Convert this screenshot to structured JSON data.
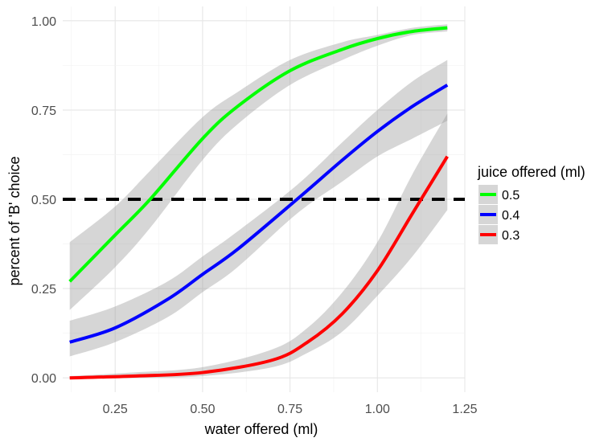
{
  "chart_data": {
    "type": "line",
    "xlabel": "water offered (ml)",
    "ylabel": "percent of 'B' choice",
    "xlim": [
      0.1,
      1.25
    ],
    "ylim": [
      -0.04,
      1.04
    ],
    "xticks": [
      0.25,
      0.5,
      0.75,
      1.0,
      1.25
    ],
    "xtick_labels": [
      "0.25",
      "0.50",
      "0.75",
      "1.00",
      "1.25"
    ],
    "yticks": [
      0.0,
      0.25,
      0.5,
      0.75,
      1.0
    ],
    "ytick_labels": [
      "0.00",
      "0.25",
      "0.50",
      "0.75",
      "1.00"
    ],
    "grid": true,
    "reference_line": {
      "y": 0.5,
      "style": "dashed",
      "color": "#000000"
    },
    "legend": {
      "title": "juice offered (ml)",
      "position": "right"
    },
    "series": [
      {
        "name": "0.5",
        "color": "#00ff00",
        "x": [
          0.12,
          0.25,
          0.35,
          0.5,
          0.6,
          0.75,
          0.9,
          1.0,
          1.1,
          1.2
        ],
        "y": [
          0.27,
          0.4,
          0.5,
          0.67,
          0.76,
          0.86,
          0.92,
          0.95,
          0.97,
          0.98
        ],
        "ci_lower": [
          0.19,
          0.31,
          0.42,
          0.61,
          0.71,
          0.82,
          0.89,
          0.93,
          0.96,
          0.97
        ],
        "ci_upper": [
          0.38,
          0.48,
          0.58,
          0.73,
          0.8,
          0.89,
          0.94,
          0.96,
          0.98,
          0.99
        ]
      },
      {
        "name": "0.4",
        "color": "#0000ff",
        "x": [
          0.12,
          0.25,
          0.4,
          0.5,
          0.6,
          0.77,
          0.9,
          1.0,
          1.1,
          1.2
        ],
        "y": [
          0.1,
          0.14,
          0.22,
          0.29,
          0.36,
          0.5,
          0.61,
          0.69,
          0.76,
          0.82
        ],
        "ci_lower": [
          0.06,
          0.1,
          0.17,
          0.24,
          0.31,
          0.46,
          0.55,
          0.62,
          0.67,
          0.72
        ],
        "ci_upper": [
          0.16,
          0.2,
          0.27,
          0.34,
          0.41,
          0.54,
          0.66,
          0.75,
          0.83,
          0.89
        ]
      },
      {
        "name": "0.3",
        "color": "#ff0000",
        "x": [
          0.12,
          0.3,
          0.5,
          0.7,
          0.8,
          0.9,
          1.0,
          1.1,
          1.2
        ],
        "y": [
          0.0,
          0.005,
          0.015,
          0.05,
          0.1,
          0.18,
          0.3,
          0.46,
          0.62
        ],
        "ci_lower": [
          0.0,
          0.0,
          0.005,
          0.03,
          0.07,
          0.13,
          0.23,
          0.34,
          0.47
        ],
        "ci_upper": [
          0.005,
          0.015,
          0.03,
          0.08,
          0.14,
          0.24,
          0.38,
          0.57,
          0.74
        ]
      }
    ]
  }
}
